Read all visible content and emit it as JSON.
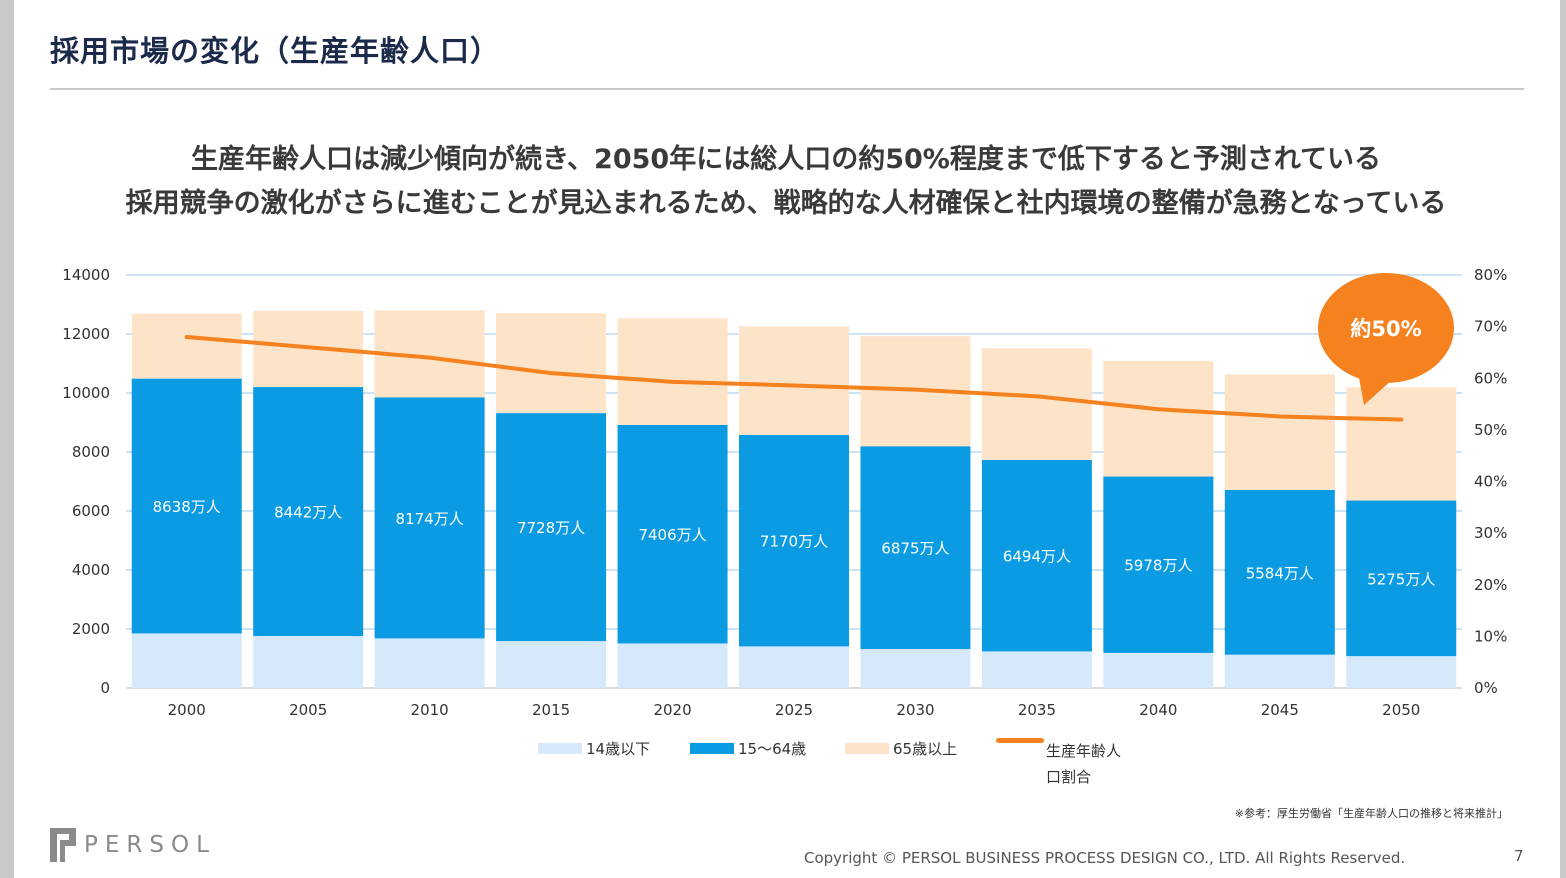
{
  "title": "採用市場の変化（生産年齢人口）",
  "headline": [
    "生産年齢人口は減少傾向が続き、2050年には総人口の約50%程度まで低下すると予測されている",
    "採用競争の激化がさらに進むことが見込まれるため、戦略的な人材確保と社内環境の整備が急務となっている"
  ],
  "colors": {
    "under14": "#d5e9fb",
    "age15_64": "#0a9be3",
    "over65": "#fde3c8",
    "ratio_line": "#f5821f",
    "callout": "#f5821f",
    "title": "#1b2a4a"
  },
  "chart_data": {
    "type": "bar",
    "stacked": true,
    "categories": [
      "2000",
      "2005",
      "2010",
      "2015",
      "2020",
      "2025",
      "2030",
      "2035",
      "2040",
      "2045",
      "2050"
    ],
    "series": [
      {
        "name": "14歳以下",
        "values": [
          1850,
          1760,
          1680,
          1590,
          1510,
          1410,
          1320,
          1240,
          1190,
          1130,
          1080
        ]
      },
      {
        "name": "15～64歳",
        "values": [
          8638,
          8442,
          8174,
          7728,
          7406,
          7170,
          6875,
          6494,
          5978,
          5584,
          5275
        ]
      },
      {
        "name": "65歳以上",
        "values": [
          2200,
          2580,
          2950,
          3390,
          3620,
          3680,
          3730,
          3780,
          3920,
          3920,
          3840
        ]
      }
    ],
    "data_labels": [
      "8638万人",
      "8442万人",
      "8174万人",
      "7728万人",
      "7406万人",
      "7170万人",
      "6875万人",
      "6494万人",
      "5978万人",
      "5584万人",
      "5275万人"
    ],
    "line_series": {
      "name": "生産年齢人口割合",
      "values": [
        68,
        66,
        64,
        61,
        59.3,
        58.6,
        57.8,
        56.5,
        54,
        52.6,
        52
      ],
      "axis": "right"
    },
    "ylim": [
      0,
      14000
    ],
    "yticks": [
      "0",
      "2000",
      "4000",
      "6000",
      "8000",
      "10000",
      "12000",
      "14000"
    ],
    "y2lim": [
      0,
      80
    ],
    "y2ticks": [
      "0%",
      "10%",
      "20%",
      "30%",
      "40%",
      "50%",
      "60%",
      "70%",
      "80%"
    ],
    "callout": "約50%",
    "legend": [
      "14歳以下",
      "15～64歳",
      "65歳以上"
    ],
    "legend_line_label": [
      "生産年齢人",
      "口割合"
    ],
    "legend_position": "bottom"
  },
  "source_note": "※参考：厚生労働省「生産年齢人口の推移と将来推計」",
  "logo_text": "PERSOL",
  "copyright": "Copyright © PERSOL BUSINESS PROCESS DESIGN CO., LTD. All Rights Reserved.",
  "page_number": "7"
}
